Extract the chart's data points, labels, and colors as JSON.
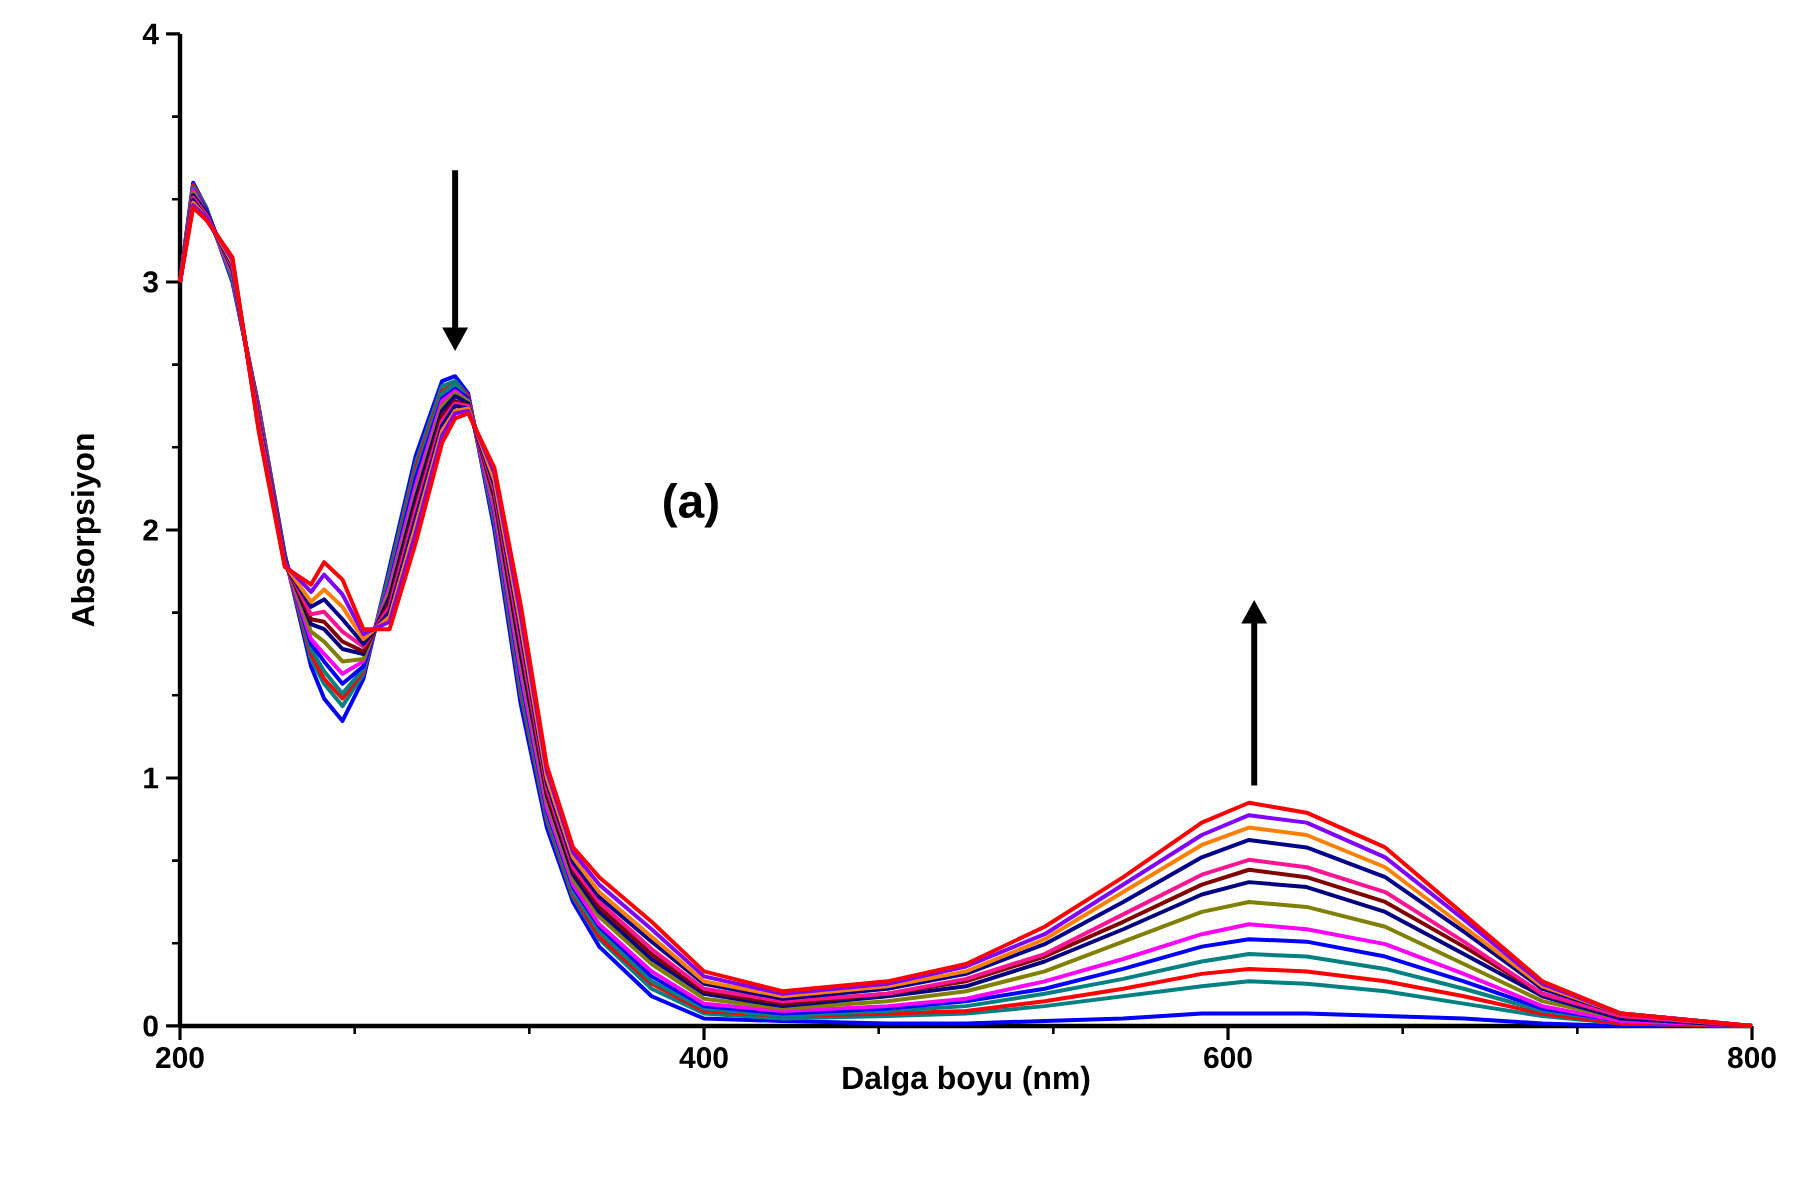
{
  "chart_data": {
    "type": "line",
    "xlabel": "Dalga boyu (nm)",
    "ylabel": "Absorpsiyon",
    "annotations": [
      "(a)"
    ],
    "xlim": [
      200,
      800
    ],
    "ylim": [
      0,
      4
    ],
    "xticks": [
      200,
      400,
      600,
      800
    ],
    "yticks": [
      0,
      1,
      2,
      3,
      4
    ],
    "marker": "none",
    "line_style": "solid",
    "x": [
      200,
      205,
      210,
      220,
      230,
      240,
      250,
      255,
      262,
      270,
      280,
      290,
      300,
      305,
      310,
      320,
      330,
      340,
      350,
      360,
      380,
      400,
      430,
      470,
      500,
      530,
      560,
      590,
      608,
      630,
      660,
      690,
      720,
      750,
      800
    ],
    "series": [
      {
        "color": "#0000ff",
        "values": [
          3.0,
          3.4,
          3.3,
          3.0,
          2.5,
          1.9,
          1.45,
          1.32,
          1.23,
          1.4,
          1.85,
          2.3,
          2.6,
          2.62,
          2.55,
          2.0,
          1.3,
          0.8,
          0.5,
          0.32,
          0.12,
          0.03,
          0.02,
          0.01,
          0.01,
          0.02,
          0.03,
          0.05,
          0.05,
          0.05,
          0.04,
          0.03,
          0.01,
          0,
          0
        ]
      },
      {
        "color": "#008080",
        "values": [
          3.0,
          3.39,
          3.3,
          3.01,
          2.49,
          1.9,
          1.48,
          1.38,
          1.29,
          1.42,
          1.83,
          2.27,
          2.58,
          2.6,
          2.54,
          2.03,
          1.34,
          0.83,
          0.52,
          0.35,
          0.15,
          0.05,
          0.03,
          0.04,
          0.05,
          0.08,
          0.12,
          0.16,
          0.18,
          0.17,
          0.14,
          0.09,
          0.04,
          0.01,
          0
        ]
      },
      {
        "color": "#ff0000",
        "values": [
          3.0,
          3.39,
          3.29,
          3.02,
          2.49,
          1.89,
          1.5,
          1.4,
          1.32,
          1.43,
          1.81,
          2.25,
          2.56,
          2.59,
          2.54,
          2.04,
          1.36,
          0.84,
          0.53,
          0.36,
          0.17,
          0.06,
          0.04,
          0.05,
          0.06,
          0.1,
          0.15,
          0.21,
          0.23,
          0.22,
          0.18,
          0.12,
          0.05,
          0.01,
          0
        ]
      },
      {
        "color": "#008080",
        "values": [
          3.0,
          3.38,
          3.29,
          3.02,
          2.48,
          1.89,
          1.52,
          1.43,
          1.34,
          1.44,
          1.8,
          2.23,
          2.55,
          2.59,
          2.53,
          2.05,
          1.38,
          0.85,
          0.54,
          0.38,
          0.18,
          0.07,
          0.04,
          0.06,
          0.08,
          0.13,
          0.19,
          0.26,
          0.29,
          0.28,
          0.23,
          0.15,
          0.06,
          0.02,
          0
        ]
      },
      {
        "color": "#0000ff",
        "values": [
          3.0,
          3.37,
          3.29,
          3.03,
          2.47,
          1.89,
          1.54,
          1.47,
          1.38,
          1.45,
          1.78,
          2.21,
          2.53,
          2.57,
          2.53,
          2.07,
          1.41,
          0.87,
          0.56,
          0.4,
          0.2,
          0.08,
          0.05,
          0.07,
          0.1,
          0.15,
          0.23,
          0.32,
          0.35,
          0.34,
          0.28,
          0.18,
          0.07,
          0.02,
          0
        ]
      },
      {
        "color": "#ff00ff",
        "values": [
          3.0,
          3.37,
          3.28,
          3.03,
          2.47,
          1.88,
          1.56,
          1.5,
          1.42,
          1.47,
          1.77,
          2.18,
          2.52,
          2.56,
          2.52,
          2.08,
          1.43,
          0.88,
          0.57,
          0.41,
          0.22,
          0.09,
          0.06,
          0.08,
          0.11,
          0.18,
          0.27,
          0.37,
          0.41,
          0.39,
          0.33,
          0.21,
          0.08,
          0.02,
          0
        ]
      },
      {
        "color": "#808000",
        "values": [
          3.0,
          3.36,
          3.28,
          3.04,
          2.46,
          1.88,
          1.59,
          1.55,
          1.47,
          1.48,
          1.75,
          2.15,
          2.5,
          2.55,
          2.52,
          2.11,
          1.47,
          0.91,
          0.59,
          0.44,
          0.25,
          0.11,
          0.07,
          0.1,
          0.14,
          0.22,
          0.34,
          0.46,
          0.5,
          0.48,
          0.4,
          0.25,
          0.1,
          0.03,
          0
        ]
      },
      {
        "color": "#000080",
        "values": [
          3.0,
          3.35,
          3.28,
          3.05,
          2.45,
          1.88,
          1.62,
          1.6,
          1.52,
          1.5,
          1.73,
          2.13,
          2.48,
          2.54,
          2.51,
          2.13,
          1.5,
          0.93,
          0.61,
          0.46,
          0.27,
          0.13,
          0.08,
          0.12,
          0.16,
          0.26,
          0.39,
          0.53,
          0.58,
          0.56,
          0.46,
          0.29,
          0.12,
          0.03,
          0
        ]
      },
      {
        "color": "#800000",
        "values": [
          3.0,
          3.34,
          3.27,
          3.06,
          2.44,
          1.87,
          1.64,
          1.63,
          1.55,
          1.51,
          1.71,
          2.1,
          2.46,
          2.52,
          2.5,
          2.14,
          1.53,
          0.94,
          0.63,
          0.48,
          0.29,
          0.14,
          0.09,
          0.13,
          0.18,
          0.28,
          0.42,
          0.57,
          0.63,
          0.6,
          0.5,
          0.32,
          0.13,
          0.04,
          0
        ]
      },
      {
        "color": "#ff1493",
        "values": [
          3.0,
          3.34,
          3.27,
          3.06,
          2.44,
          1.87,
          1.66,
          1.67,
          1.59,
          1.53,
          1.69,
          2.08,
          2.44,
          2.51,
          2.5,
          2.16,
          1.55,
          0.96,
          0.64,
          0.5,
          0.31,
          0.15,
          0.1,
          0.13,
          0.19,
          0.29,
          0.45,
          0.61,
          0.67,
          0.64,
          0.54,
          0.34,
          0.13,
          0.04,
          0
        ]
      },
      {
        "color": "#00008b",
        "values": [
          3.0,
          3.33,
          3.26,
          3.07,
          2.43,
          1.86,
          1.69,
          1.72,
          1.64,
          1.54,
          1.67,
          2.05,
          2.42,
          2.5,
          2.49,
          2.18,
          1.59,
          0.98,
          0.66,
          0.52,
          0.34,
          0.17,
          0.11,
          0.15,
          0.21,
          0.33,
          0.5,
          0.68,
          0.75,
          0.72,
          0.6,
          0.38,
          0.15,
          0.05,
          0
        ]
      },
      {
        "color": "#ff8000",
        "values": [
          3.0,
          3.32,
          3.26,
          3.08,
          2.42,
          1.86,
          1.71,
          1.76,
          1.69,
          1.56,
          1.65,
          2.02,
          2.4,
          2.48,
          2.49,
          2.2,
          1.62,
          1.0,
          0.68,
          0.54,
          0.36,
          0.18,
          0.12,
          0.16,
          0.22,
          0.35,
          0.54,
          0.73,
          0.8,
          0.77,
          0.64,
          0.4,
          0.16,
          0.05,
          0
        ]
      },
      {
        "color": "#8000ff",
        "values": [
          3.0,
          3.31,
          3.26,
          3.09,
          2.41,
          1.86,
          1.75,
          1.82,
          1.74,
          1.58,
          1.63,
          1.99,
          2.38,
          2.47,
          2.48,
          2.23,
          1.66,
          1.03,
          0.7,
          0.57,
          0.39,
          0.2,
          0.13,
          0.17,
          0.24,
          0.37,
          0.57,
          0.77,
          0.85,
          0.82,
          0.68,
          0.43,
          0.17,
          0.05,
          0
        ]
      },
      {
        "color": "#ff0000",
        "values": [
          3.0,
          3.3,
          3.25,
          3.1,
          2.4,
          1.85,
          1.78,
          1.87,
          1.8,
          1.6,
          1.6,
          1.95,
          2.35,
          2.45,
          2.47,
          2.25,
          1.7,
          1.05,
          0.72,
          0.6,
          0.42,
          0.22,
          0.14,
          0.18,
          0.25,
          0.4,
          0.6,
          0.82,
          0.9,
          0.86,
          0.72,
          0.45,
          0.18,
          0.05,
          0
        ]
      }
    ]
  }
}
